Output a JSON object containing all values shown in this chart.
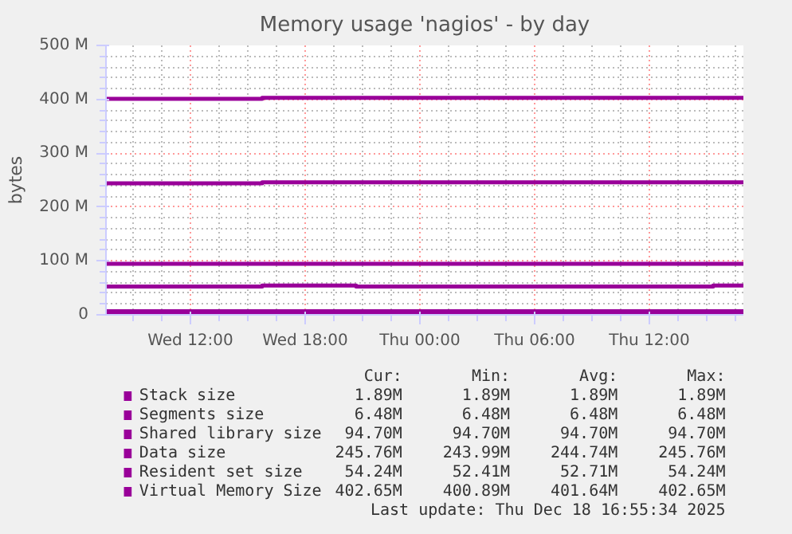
{
  "chart_data": {
    "type": "step",
    "title": "Memory usage 'nagios' - by day",
    "ylabel": "bytes",
    "xlim": [
      "2025-12-17T07:35",
      "2025-12-18T16:55"
    ],
    "xticks": [
      {
        "value": "2025-12-17T12:00",
        "label": "Wed 12:00"
      },
      {
        "value": "2025-12-17T18:00",
        "label": "Wed 18:00"
      },
      {
        "value": "2025-12-18T00:00",
        "label": "Thu 00:00"
      },
      {
        "value": "2025-12-18T06:00",
        "label": "Thu 06:00"
      },
      {
        "value": "2025-12-18T12:00",
        "label": "Thu 12:00"
      }
    ],
    "ylim": [
      0,
      500
    ],
    "yticks": [
      0,
      {
        "value": 100,
        "label": "100 M"
      },
      {
        "value": 200,
        "label": "200 M"
      },
      {
        "value": 300,
        "label": "300 M"
      },
      {
        "value": 400,
        "label": "400 M"
      },
      {
        "value": 500,
        "label": "500 M"
      }
    ],
    "grid": true,
    "legend": "bottom",
    "series": [
      {
        "name": "Stack size",
        "color": "#990099",
        "x": [
          "2025-12-17T07:35",
          "2025-12-18T16:55"
        ],
        "values": [
          1.89,
          1.89
        ]
      },
      {
        "name": "Segments size",
        "color": "#990099",
        "x": [
          "2025-12-17T07:35",
          "2025-12-18T16:55"
        ],
        "values": [
          6.48,
          6.48
        ]
      },
      {
        "name": "Shared library size",
        "color": "#990099",
        "x": [
          "2025-12-17T07:35",
          "2025-12-18T16:55"
        ],
        "values": [
          94.7,
          94.7
        ]
      },
      {
        "name": "Data size",
        "color": "#990099",
        "x": [
          "2025-12-17T07:35",
          "2025-12-17T15:45",
          "2025-12-18T16:55"
        ],
        "values": [
          243.99,
          245.76,
          245.76
        ]
      },
      {
        "name": "Resident set size",
        "color": "#990099",
        "x": [
          "2025-12-17T07:35",
          "2025-12-17T15:45",
          "2025-12-17T20:40",
          "2025-12-18T15:20",
          "2025-12-18T16:55"
        ],
        "values": [
          52.41,
          54.24,
          52.41,
          54.24,
          54.24
        ]
      },
      {
        "name": "Virtual Memory Size",
        "color": "#990099",
        "x": [
          "2025-12-17T07:35",
          "2025-12-17T15:45",
          "2025-12-18T16:55"
        ],
        "values": [
          400.89,
          402.65,
          402.65
        ]
      }
    ],
    "annotations": [
      "Cur:",
      "Min:",
      "Avg:",
      "Max:",
      "1.89M",
      "1.89M",
      "1.89M",
      "1.89M",
      "6.48M",
      "6.48M",
      "6.48M",
      "6.48M",
      "94.70M",
      "94.70M",
      "94.70M",
      "94.70M",
      "245.76M",
      "243.99M",
      "244.74M",
      "245.76M",
      "54.24M",
      "52.41M",
      "52.71M",
      "54.24M",
      "402.65M",
      "400.89M",
      "401.64M",
      "402.65M",
      "Last update: Thu Dec 18 16:55:34 2025"
    ]
  }
}
